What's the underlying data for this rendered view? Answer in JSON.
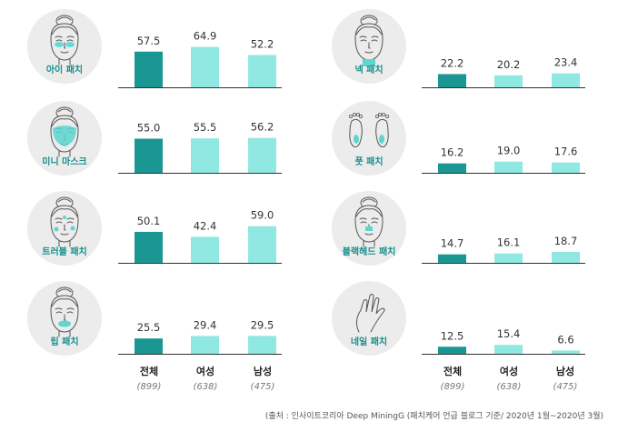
{
  "colors": {
    "overall": "#1a9792",
    "female": "#8fe8e2",
    "male": "#8fe8e2",
    "baseline": "#333333",
    "label": "#178f8c",
    "icon_bg": "#ececec"
  },
  "chart_data": [
    {
      "type": "bar",
      "label": "아이 패치",
      "icon": "face-eye-patch-icon",
      "categories": [
        "전체",
        "여성",
        "남성"
      ],
      "values": [
        57.5,
        64.9,
        52.2
      ]
    },
    {
      "type": "bar",
      "label": "미니 마스크",
      "icon": "face-mini-mask-icon",
      "categories": [
        "전체",
        "여성",
        "남성"
      ],
      "values": [
        55.0,
        55.5,
        56.2
      ]
    },
    {
      "type": "bar",
      "label": "트러블 패치",
      "icon": "face-trouble-patch-icon",
      "categories": [
        "전체",
        "여성",
        "남성"
      ],
      "values": [
        50.1,
        42.4,
        59.0
      ]
    },
    {
      "type": "bar",
      "label": "립 패치",
      "icon": "face-lip-patch-icon",
      "categories": [
        "전체",
        "여성",
        "남성"
      ],
      "values": [
        25.5,
        29.4,
        29.5
      ]
    },
    {
      "type": "bar",
      "label": "넥 패치",
      "icon": "face-neck-patch-icon",
      "categories": [
        "전체",
        "여성",
        "남성"
      ],
      "values": [
        22.2,
        20.2,
        23.4
      ]
    },
    {
      "type": "bar",
      "label": "풋 패치",
      "icon": "feet-icon",
      "categories": [
        "전체",
        "여성",
        "남성"
      ],
      "values": [
        16.2,
        19.0,
        17.6
      ]
    },
    {
      "type": "bar",
      "label": "블랙헤드 패치",
      "icon": "face-blackhead-patch-icon",
      "categories": [
        "전체",
        "여성",
        "남성"
      ],
      "values": [
        14.7,
        16.1,
        18.7
      ]
    },
    {
      "type": "bar",
      "label": "네일 패치",
      "icon": "hand-nail-icon",
      "categories": [
        "전체",
        "여성",
        "남성"
      ],
      "values": [
        12.5,
        15.4,
        6.6
      ]
    }
  ],
  "axis": {
    "categories": [
      "전체",
      "여성",
      "남성"
    ],
    "counts": [
      "(899)",
      "(638)",
      "(475)"
    ]
  },
  "source": "(출처 : 인사이트코리아 Deep MiningG (패치케어 언급 블로그 기준/ 2020년 1월~2020년 3월)"
}
